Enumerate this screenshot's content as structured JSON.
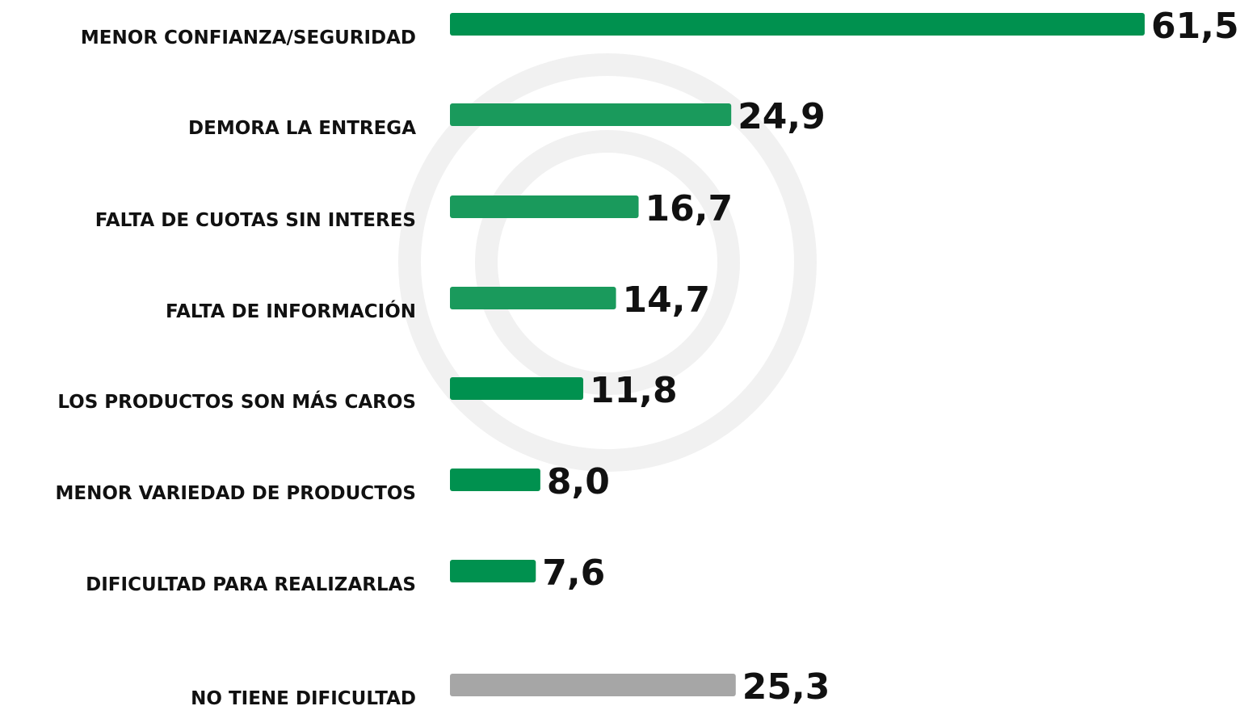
{
  "chart_data": {
    "type": "hbar",
    "categories": [
      "MENOR CONFIANZA/SEGURIDAD",
      "DEMORA LA ENTREGA",
      "FALTA DE CUOTAS SIN INTERES",
      "FALTA DE INFORMACIÓN",
      "LOS PRODUCTOS SON MÁS CAROS",
      "MENOR VARIEDAD DE PRODUCTOS",
      "DIFICULTAD PARA REALIZARLAS",
      "NO TIENE DIFICULTAD"
    ],
    "values": [
      61.5,
      24.9,
      16.7,
      14.7,
      11.8,
      8.0,
      7.6,
      25.3
    ],
    "value_labels": [
      "61,5",
      "24,9",
      "16,7",
      "14,7",
      "11,8",
      "8,0",
      "7,6",
      "25,3"
    ],
    "colors": [
      "#00914f",
      "#1a9a5c",
      "#1a9a5c",
      "#1a9a5c",
      "#00914f",
      "#00914f",
      "#00914f",
      "#a6a6a6"
    ]
  }
}
